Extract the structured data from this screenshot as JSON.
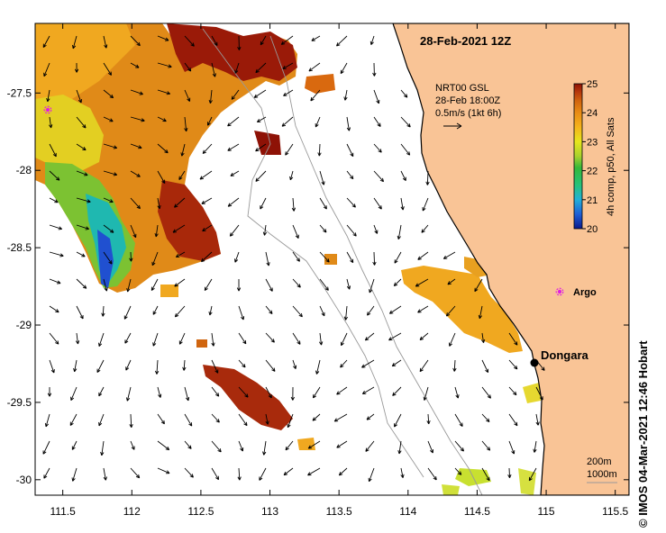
{
  "title": "28-Feb-2021 12Z",
  "credit": "IMOS 04-Mar-2021 12:46 Hobart",
  "copyright_symbol": "©",
  "current_legend": {
    "line1": "NRT00 GSL",
    "line2": "28-Feb 18:00Z",
    "line3": "0.5m/s (1kt 6h)"
  },
  "colorbar": {
    "label": "4h comp, p50, All Sats",
    "ticks": [
      "20",
      "21",
      "22",
      "23",
      "24",
      "25"
    ],
    "min": 20,
    "max": 25,
    "colors": [
      "#0a1a8c",
      "#1f5fd6",
      "#22b0d8",
      "#27c27a",
      "#34b83a",
      "#a9d12e",
      "#e6e61c",
      "#f4b41c",
      "#e98c14",
      "#d1650f",
      "#b83a0c",
      "#8e1206"
    ]
  },
  "depth_legend": {
    "contour1": "200m",
    "contour2": "1000m"
  },
  "places": [
    {
      "name": "Dongara",
      "lon": 114.93,
      "lat": -29.26,
      "marker": "black-dot"
    },
    {
      "name": "Argo",
      "lon": 115.11,
      "lat": -28.83,
      "marker": "magenta-star"
    }
  ],
  "argo_marker_2": {
    "lon": 111.43,
    "lat": -27.64
  },
  "axes": {
    "lon_ticks": [
      "111.5",
      "112",
      "112.5",
      "113",
      "113.5",
      "114",
      "114.5",
      "115",
      "115.5"
    ],
    "lat_ticks": [
      "-27.5",
      "-28",
      "-28.5",
      "-29",
      "-29.5",
      "-30"
    ],
    "lon_range": [
      111.3,
      115.6
    ],
    "lat_range": [
      -30.1,
      -27.05
    ]
  },
  "colors": {
    "land": "#f9c496",
    "coast": "#000000",
    "isobath": "#999999"
  }
}
